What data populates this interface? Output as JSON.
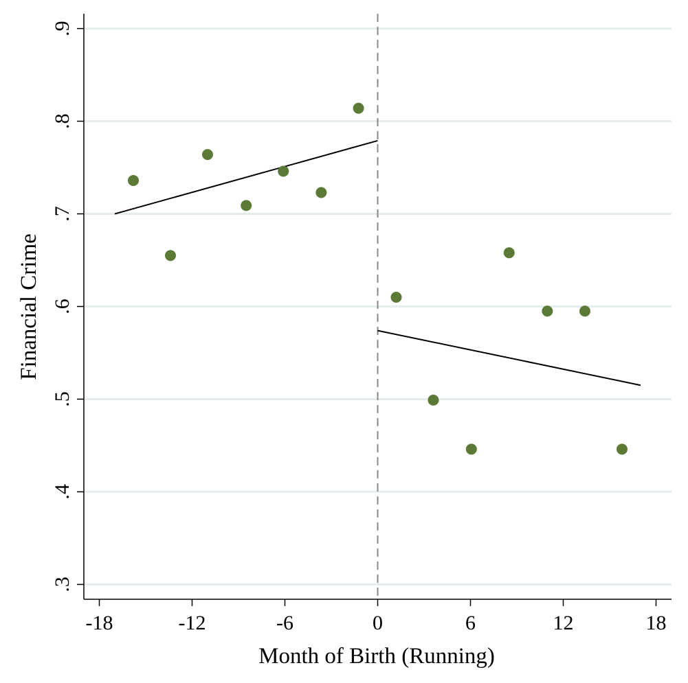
{
  "chart_data": {
    "type": "scatter",
    "x_label": "Month of Birth (Running)",
    "y_label": "Financial Crime",
    "series": [
      {
        "color": "#5b7a35",
        "x": [
          -15.8,
          -13.4,
          -11.0,
          -8.5,
          -6.1,
          -3.65,
          -1.24,
          1.2,
          3.6,
          6.06,
          8.5,
          10.97,
          13.4,
          15.8
        ],
        "values": [
          0.736,
          0.655,
          0.764,
          0.709,
          0.746,
          0.723,
          0.814,
          0.61,
          0.499,
          0.446,
          0.658,
          0.595,
          0.595,
          0.446
        ]
      }
    ],
    "fit_lines": [
      {
        "color": "#000000",
        "x": [
          -17,
          0
        ],
        "values": [
          0.7,
          0.779
        ]
      },
      {
        "color": "#000000",
        "x": [
          0,
          17
        ],
        "values": [
          0.574,
          0.515
        ]
      }
    ],
    "cutoff": 0,
    "cutoff_color": "#888888",
    "xlim": [
      -19,
      19
    ],
    "ylim": [
      0.284,
      0.916
    ],
    "xticks": [
      -18,
      -12,
      -6,
      0,
      6,
      12,
      18
    ],
    "yticks": [
      {
        "value": 0.3,
        "label": ".3"
      },
      {
        "value": 0.4,
        "label": ".4"
      },
      {
        "value": 0.5,
        "label": ".5"
      },
      {
        "value": 0.6,
        "label": ".6"
      },
      {
        "value": 0.7,
        "label": ".7"
      },
      {
        "value": 0.8,
        "label": ".8"
      },
      {
        "value": 0.9,
        "label": ".9"
      }
    ],
    "grid": true
  }
}
